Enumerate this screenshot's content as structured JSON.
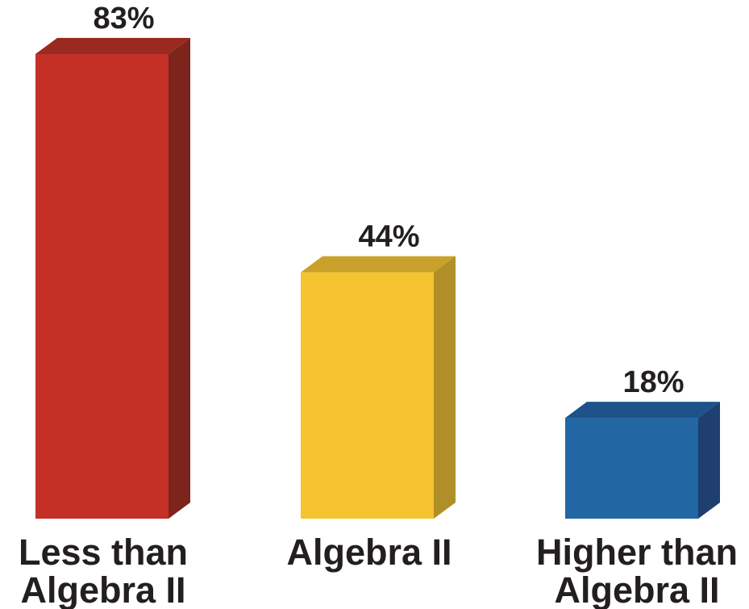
{
  "chart_data": {
    "type": "bar",
    "categories": [
      [
        "Less than",
        "Algebra II"
      ],
      [
        "Algebra II"
      ],
      [
        "Higher than",
        "Algebra II"
      ]
    ],
    "values": [
      83,
      44,
      18
    ],
    "value_labels": [
      "83%",
      "44%",
      "18%"
    ],
    "value_unit": "%",
    "style": "3d",
    "colors": [
      {
        "front": "#c43026",
        "top": "#9a2a1f",
        "side": "#7d251c"
      },
      {
        "front": "#f5c42e",
        "top": "#c9a02a",
        "side": "#b08f28"
      },
      {
        "front": "#2266a4",
        "top": "#1d528a",
        "side": "#1e3f6f"
      }
    ],
    "axes_visible": false,
    "grid": false,
    "legend": "none"
  }
}
